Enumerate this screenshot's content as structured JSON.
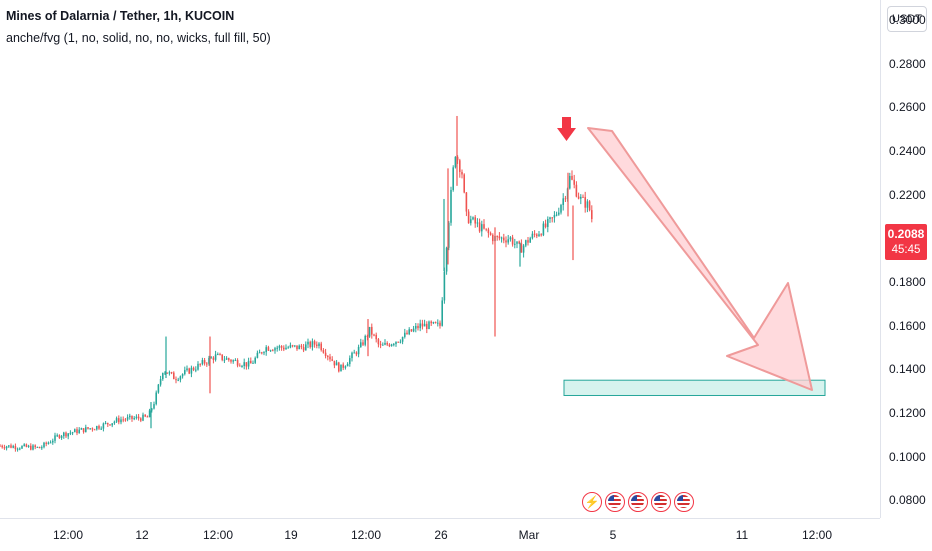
{
  "header": {
    "title": "Mines of Dalarnia / Tether, 1h, KUCOIN",
    "indicator": "anche/fvg (1, no, solid, no, no, wicks, full fill, 50)"
  },
  "price_axis": {
    "currency": "USDT",
    "ticks": [
      "0.3000",
      "0.2800",
      "0.2600",
      "0.2400",
      "0.2200",
      "0.2000",
      "0.1800",
      "0.1600",
      "0.1400",
      "0.1200",
      "0.1000",
      "0.0800"
    ],
    "tick_values": [
      0.3,
      0.28,
      0.26,
      0.24,
      0.22,
      0.2,
      0.18,
      0.16,
      0.14,
      0.12,
      0.1,
      0.08
    ]
  },
  "time_axis": {
    "ticks": [
      "12:00",
      "12",
      "12:00",
      "19",
      "12:00",
      "26",
      "Mar",
      "5",
      "11",
      "12:00"
    ]
  },
  "last_price": {
    "value": "0.2088",
    "countdown": "45:45",
    "color": "#f23645"
  },
  "colors": {
    "up": "#26a69a",
    "down": "#ef5350",
    "arrow": "#f23645",
    "projection_fill": "#ffcdd2",
    "zone_fill": "#d6f3ee",
    "zone_border": "#26a69a"
  },
  "events": [
    {
      "icon": "lightning-icon"
    },
    {
      "icon": "us-flag-icon"
    },
    {
      "icon": "us-flag-icon"
    },
    {
      "icon": "us-flag-icon"
    },
    {
      "icon": "us-flag-icon"
    }
  ],
  "chart_data": {
    "type": "candlestick",
    "path_keypoints": [
      [
        0,
        0.105
      ],
      [
        40,
        0.104
      ],
      [
        60,
        0.11
      ],
      [
        100,
        0.114
      ],
      [
        120,
        0.117
      ],
      [
        148,
        0.118
      ],
      [
        155,
        0.126
      ],
      [
        163,
        0.14
      ],
      [
        175,
        0.136
      ],
      [
        200,
        0.142
      ],
      [
        215,
        0.146
      ],
      [
        250,
        0.142
      ],
      [
        265,
        0.15
      ],
      [
        300,
        0.15
      ],
      [
        318,
        0.152
      ],
      [
        340,
        0.14
      ],
      [
        360,
        0.15
      ],
      [
        370,
        0.158
      ],
      [
        380,
        0.15
      ],
      [
        400,
        0.154
      ],
      [
        420,
        0.16
      ],
      [
        440,
        0.16
      ],
      [
        445,
        0.19
      ],
      [
        455,
        0.24
      ],
      [
        462,
        0.23
      ],
      [
        466,
        0.21
      ],
      [
        480,
        0.205
      ],
      [
        494,
        0.2
      ],
      [
        500,
        0.2
      ],
      [
        510,
        0.2
      ],
      [
        520,
        0.195
      ],
      [
        530,
        0.2
      ],
      [
        545,
        0.205
      ],
      [
        555,
        0.21
      ],
      [
        565,
        0.22
      ],
      [
        570,
        0.228
      ],
      [
        580,
        0.218
      ],
      [
        588,
        0.215
      ],
      [
        593,
        0.209
      ]
    ],
    "spikes": [
      {
        "x": 151,
        "high": 0.125,
        "low": 0.113
      },
      {
        "x": 166,
        "high": 0.155,
        "low": 0.136
      },
      {
        "x": 210,
        "high": 0.155,
        "low": 0.129
      },
      {
        "x": 368,
        "high": 0.163,
        "low": 0.146
      },
      {
        "x": 444,
        "high": 0.218,
        "low": 0.185
      },
      {
        "x": 448,
        "high": 0.232,
        "low": 0.188
      },
      {
        "x": 457,
        "high": 0.256,
        "low": 0.224
      },
      {
        "x": 495,
        "high": 0.205,
        "low": 0.155
      },
      {
        "x": 520,
        "high": 0.198,
        "low": 0.187
      },
      {
        "x": 568,
        "high": 0.23,
        "low": 0.21
      },
      {
        "x": 573,
        "high": 0.215,
        "low": 0.19
      }
    ],
    "last": 0.2088,
    "ylim": [
      0.0719,
      0.3091
    ]
  },
  "drawings": {
    "marker_arrow": "down-arrow-icon",
    "target_zone": {
      "top": 0.135,
      "bottom": 0.128
    }
  }
}
